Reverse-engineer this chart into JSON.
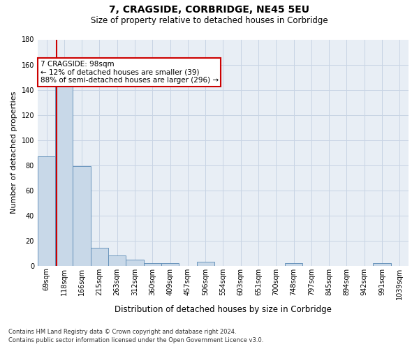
{
  "title": "7, CRAGSIDE, CORBRIDGE, NE45 5EU",
  "subtitle": "Size of property relative to detached houses in Corbridge",
  "xlabel": "Distribution of detached houses by size in Corbridge",
  "ylabel": "Number of detached properties",
  "footnote1": "Contains HM Land Registry data © Crown copyright and database right 2024.",
  "footnote2": "Contains public sector information licensed under the Open Government Licence v3.0.",
  "bin_labels": [
    "69sqm",
    "118sqm",
    "166sqm",
    "215sqm",
    "263sqm",
    "312sqm",
    "360sqm",
    "409sqm",
    "457sqm",
    "506sqm",
    "554sqm",
    "603sqm",
    "651sqm",
    "700sqm",
    "748sqm",
    "797sqm",
    "845sqm",
    "894sqm",
    "942sqm",
    "991sqm",
    "1039sqm"
  ],
  "bar_heights": [
    87,
    143,
    79,
    14,
    8,
    5,
    2,
    2,
    0,
    3,
    0,
    0,
    0,
    0,
    2,
    0,
    0,
    0,
    0,
    2,
    0
  ],
  "bar_color": "#c8d8e8",
  "bar_edge_color": "#5a8ab5",
  "ylim": [
    0,
    180
  ],
  "yticks": [
    0,
    20,
    40,
    60,
    80,
    100,
    120,
    140,
    160,
    180
  ],
  "red_line_color": "#cc0000",
  "background_color": "#ffffff",
  "plot_bg_color": "#e8eef5",
  "grid_color": "#c8d4e4",
  "property_line_label": "7 CRAGSIDE: 98sqm",
  "annotation_line1": "← 12% of detached houses are smaller (39)",
  "annotation_line2": "88% of semi-detached houses are larger (296) →",
  "title_fontsize": 10,
  "subtitle_fontsize": 8.5,
  "ylabel_fontsize": 8,
  "xlabel_fontsize": 8.5,
  "tick_fontsize": 7,
  "footnote_fontsize": 6,
  "annot_fontsize": 7.5
}
